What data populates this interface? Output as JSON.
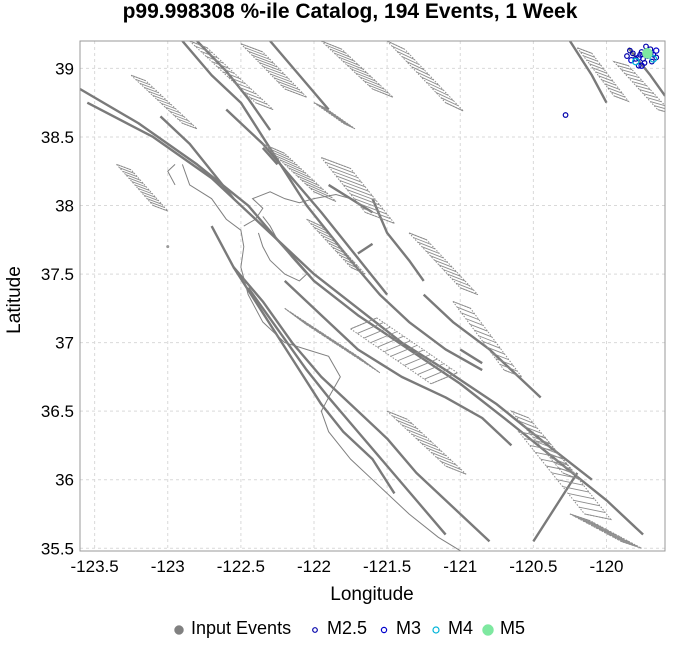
{
  "chart_data": {
    "type": "scatter",
    "title": "p99.998308 %-ile Catalog, 194 Events, 1 Week",
    "xlabel": "Longitude",
    "ylabel": "Latitude",
    "xlim": [
      -123.6,
      -119.6
    ],
    "ylim": [
      35.48,
      39.2
    ],
    "x_ticks": [
      -123.5,
      -123,
      -122.5,
      -122,
      -121.5,
      -121,
      -120.5,
      -120
    ],
    "x_tick_labels": [
      "-123.5",
      "-123",
      "-122.5",
      "-122",
      "-121.5",
      "-121",
      "-120.5",
      "-120"
    ],
    "y_ticks": [
      35.5,
      36,
      36.5,
      37,
      37.5,
      38,
      38.5,
      39
    ],
    "y_tick_labels": [
      "35.5",
      "36",
      "36.5",
      "37",
      "37.5",
      "38",
      "38.5",
      "39"
    ],
    "grid": true,
    "legend_placement": "bottom-center",
    "legend": [
      {
        "label": "Input Events",
        "marker": "filled-circle",
        "color": "#808080"
      },
      {
        "label": "M2.5",
        "marker": "open-circle",
        "color": "#0000aa"
      },
      {
        "label": "M3",
        "marker": "open-circle",
        "color": "#0000cc"
      },
      {
        "label": "M4",
        "marker": "open-circle",
        "color": "#00b4d8"
      },
      {
        "label": "M5",
        "marker": "filled-circle",
        "color": "#7ee8a0"
      }
    ],
    "series": [
      {
        "name": "M2.5",
        "color": "#0000aa",
        "points": [
          [
            -119.76,
            39.12
          ],
          [
            -119.72,
            39.09
          ],
          [
            -119.8,
            39.07
          ],
          [
            -119.68,
            39.1
          ],
          [
            -119.74,
            39.04
          ],
          [
            -119.82,
            39.11
          ],
          [
            -119.7,
            39.14
          ],
          [
            -119.78,
            39.02
          ],
          [
            -119.66,
            39.08
          ],
          [
            -119.86,
            39.09
          ],
          [
            -119.73,
            39.16
          ],
          [
            -119.69,
            39.05
          ],
          [
            -119.84,
            39.13
          ],
          [
            -119.77,
            39.1
          ],
          [
            -119.71,
            39.12
          ],
          [
            -119.75,
            39.07
          ],
          [
            -120.28,
            38.66
          ]
        ]
      },
      {
        "name": "M3",
        "color": "#0000cc",
        "points": [
          [
            -119.78,
            39.08
          ],
          [
            -119.7,
            39.11
          ],
          [
            -119.76,
            39.02
          ],
          [
            -119.66,
            39.13
          ],
          [
            -119.83,
            39.06
          ]
        ]
      },
      {
        "name": "M4",
        "color": "#00b4d8",
        "points": [
          [
            -119.8,
            39.05
          ],
          [
            -119.68,
            39.07
          ]
        ]
      },
      {
        "name": "M5",
        "color": "#7ee8a0",
        "points": [
          [
            -119.72,
            39.11
          ]
        ]
      }
    ],
    "colors": {
      "fault_lines": "#7a7a7a",
      "fault_planes": "#8c8c8c",
      "coastline": "#808080",
      "grid": "#d9d9d9",
      "frame": "#999999"
    }
  }
}
